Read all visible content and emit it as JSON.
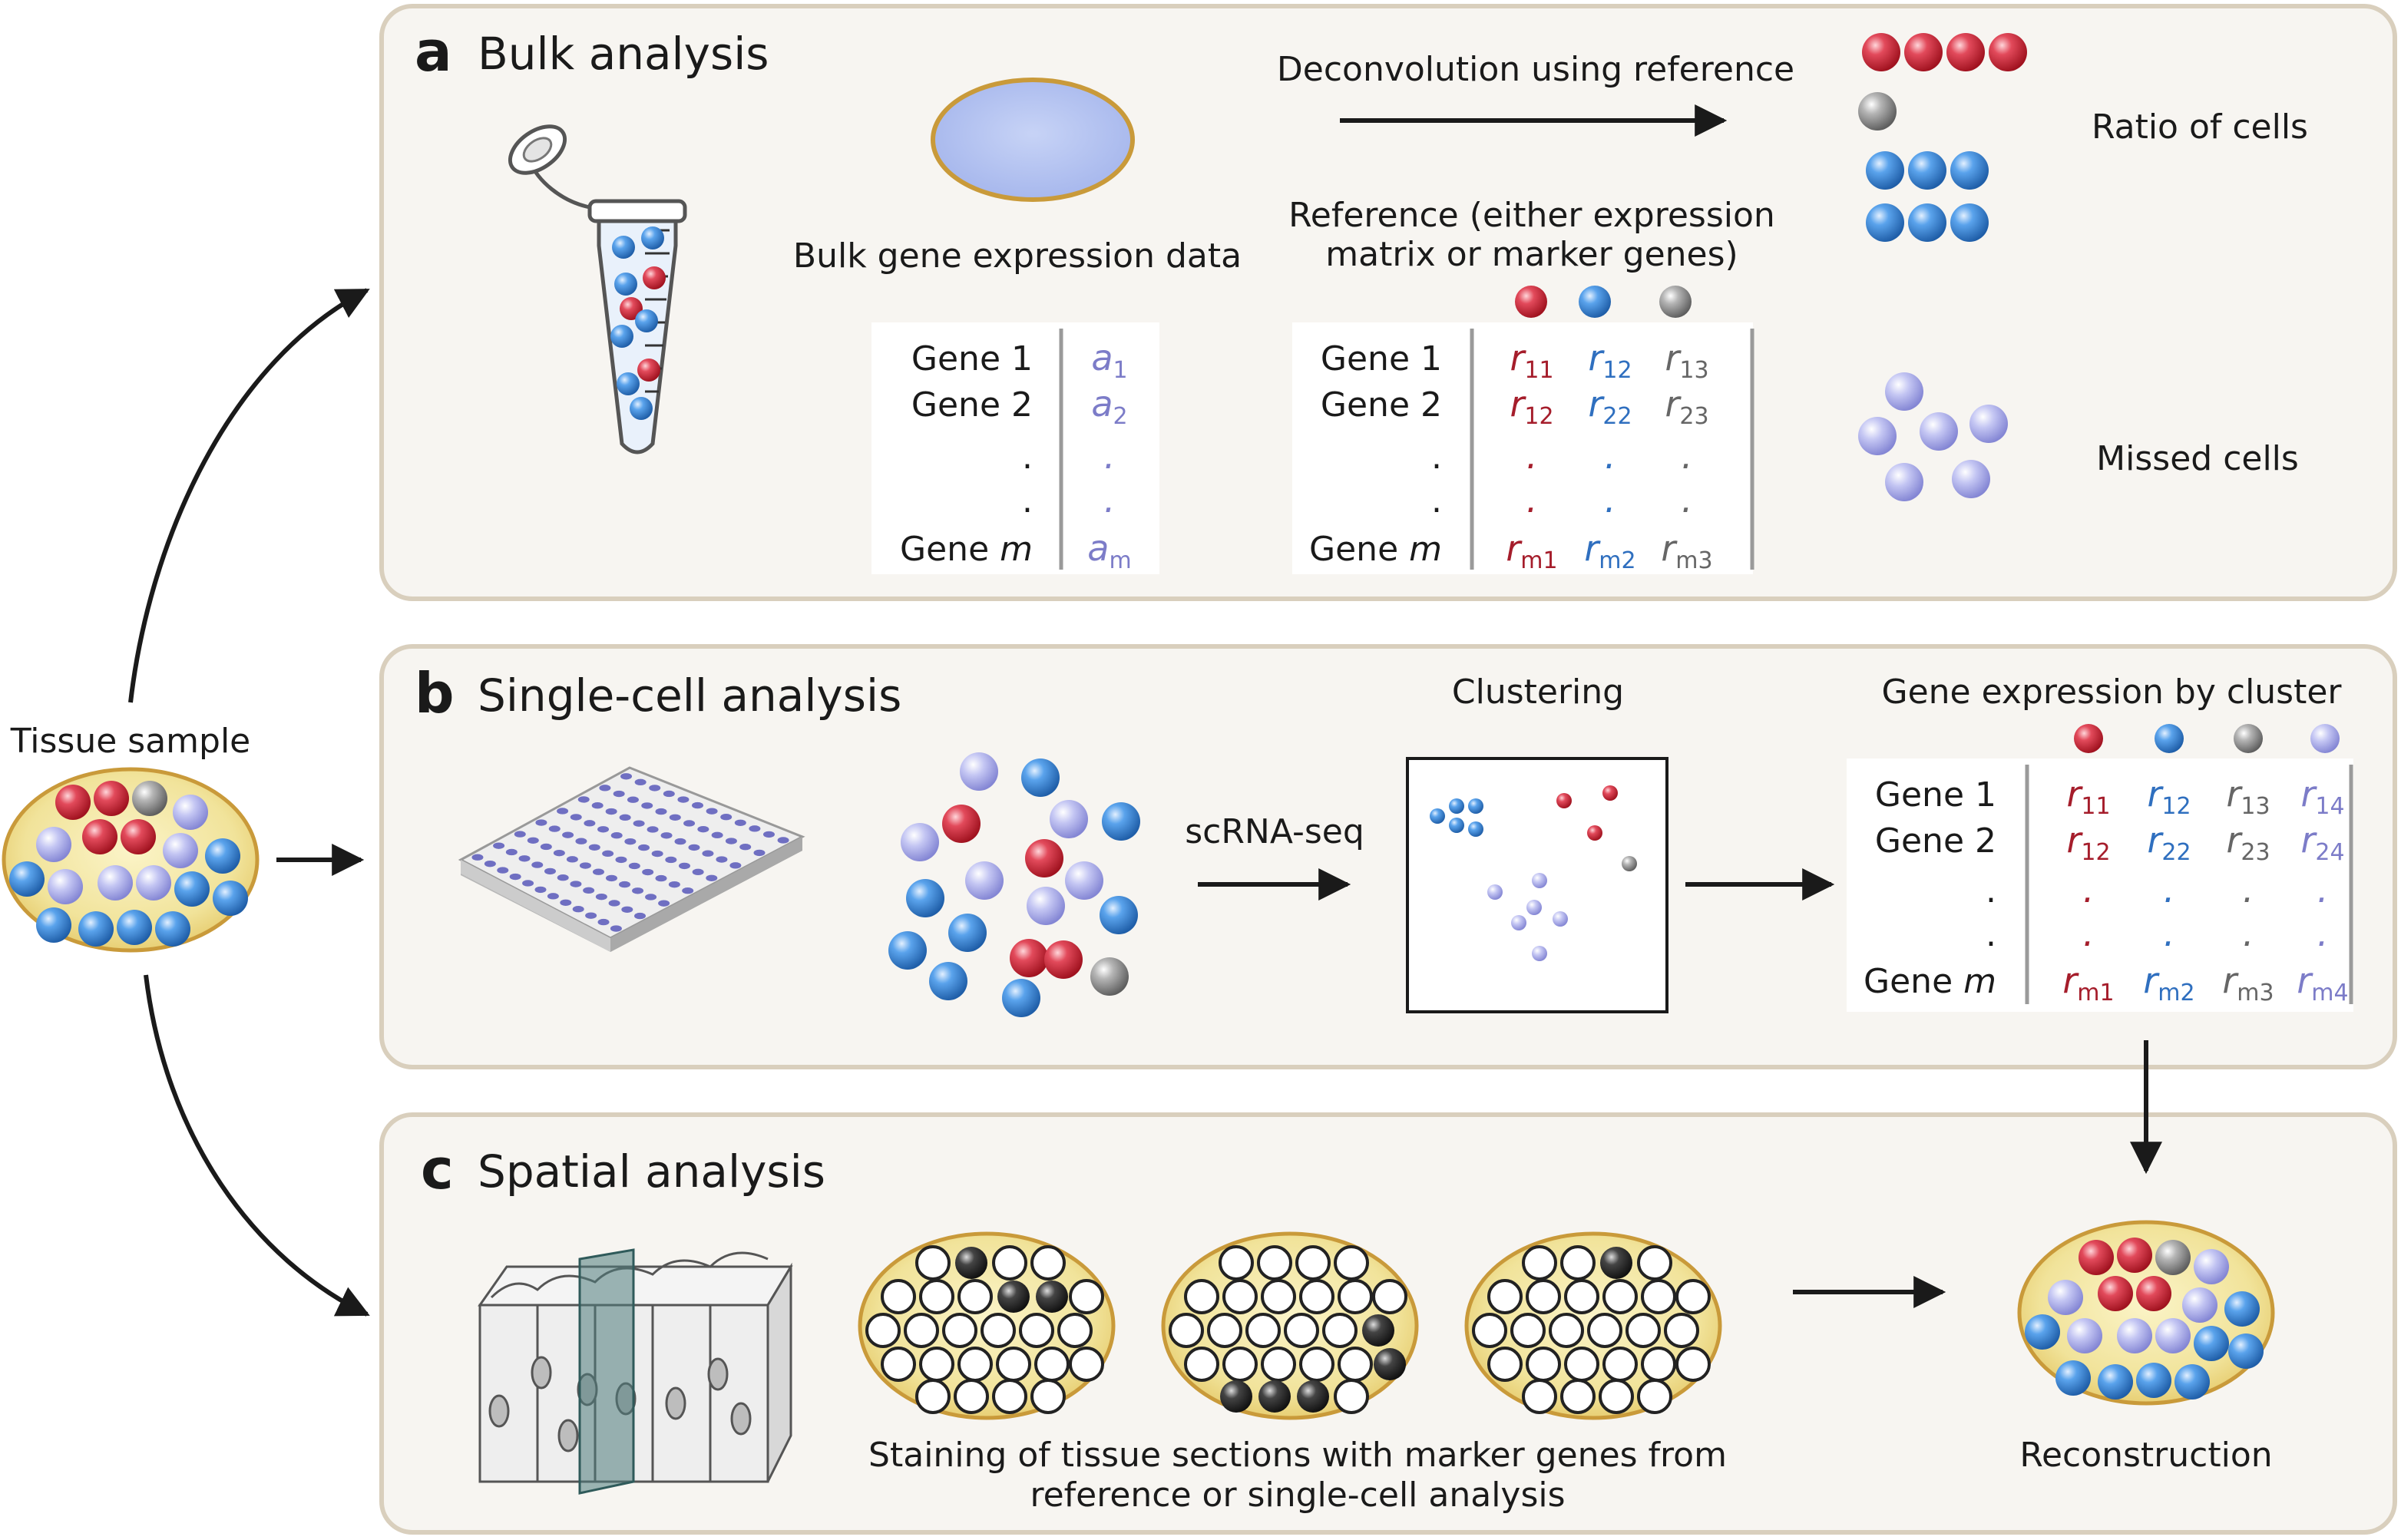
{
  "tissue_sample": {
    "label": "Tissue sample"
  },
  "panel_a": {
    "letter": "a",
    "title": "Bulk analysis",
    "bulk_label": "Bulk gene expression data",
    "deconvolution_label": "Deconvolution using reference",
    "reference_label_line1": "Reference (either expression",
    "reference_label_line2": "matrix or marker genes)",
    "ratio_label": "Ratio of cells",
    "missed_label": "Missed cells",
    "genes": [
      "Gene 1",
      "Gene 2",
      ".",
      ".",
      "Gene "
    ],
    "gene_m_var": "m",
    "bulk_values": [
      {
        "base": "a",
        "sub": "1"
      },
      {
        "base": "a",
        "sub": "2"
      },
      {
        "base": ".",
        "sub": ""
      },
      {
        "base": ".",
        "sub": ""
      },
      {
        "base": "a",
        "sub": "m"
      }
    ],
    "ref_matrix": [
      [
        {
          "base": "r",
          "sub": "11"
        },
        {
          "base": "r",
          "sub": "12"
        },
        {
          "base": "r",
          "sub": "13"
        }
      ],
      [
        {
          "base": "r",
          "sub": "12"
        },
        {
          "base": "r",
          "sub": "22"
        },
        {
          "base": "r",
          "sub": "23"
        }
      ],
      [
        {
          "base": ".",
          "sub": ""
        },
        {
          "base": ".",
          "sub": ""
        },
        {
          "base": ".",
          "sub": ""
        }
      ],
      [
        {
          "base": ".",
          "sub": ""
        },
        {
          "base": ".",
          "sub": ""
        },
        {
          "base": ".",
          "sub": ""
        }
      ],
      [
        {
          "base": "r",
          "sub": "m1"
        },
        {
          "base": "r",
          "sub": "m2"
        },
        {
          "base": "r",
          "sub": "m3"
        }
      ]
    ]
  },
  "panel_b": {
    "letter": "b",
    "title": "Single-cell analysis",
    "scrna_label": "scRNA-seq",
    "clustering_label": "Clustering",
    "gene_expr_label": "Gene expression by cluster",
    "genes": [
      "Gene 1",
      "Gene 2",
      ".",
      ".",
      "Gene "
    ],
    "gene_m_var": "m",
    "cluster_matrix": [
      [
        {
          "base": "r",
          "sub": "11"
        },
        {
          "base": "r",
          "sub": "12"
        },
        {
          "base": "r",
          "sub": "13"
        },
        {
          "base": "r",
          "sub": "14"
        }
      ],
      [
        {
          "base": "r",
          "sub": "12"
        },
        {
          "base": "r",
          "sub": "22"
        },
        {
          "base": "r",
          "sub": "23"
        },
        {
          "base": "r",
          "sub": "24"
        }
      ],
      [
        {
          "base": ".",
          "sub": ""
        },
        {
          "base": ".",
          "sub": ""
        },
        {
          "base": ".",
          "sub": ""
        },
        {
          "base": ".",
          "sub": ""
        }
      ],
      [
        {
          "base": ".",
          "sub": ""
        },
        {
          "base": ".",
          "sub": ""
        },
        {
          "base": ".",
          "sub": ""
        },
        {
          "base": ".",
          "sub": ""
        }
      ],
      [
        {
          "base": "r",
          "sub": "m1"
        },
        {
          "base": "r",
          "sub": "m2"
        },
        {
          "base": "r",
          "sub": "m3"
        },
        {
          "base": "r",
          "sub": "m4"
        }
      ]
    ]
  },
  "panel_c": {
    "letter": "c",
    "title": "Spatial analysis",
    "staining_line1": "Staining of tissue sections with marker genes from",
    "staining_line2": "reference or single-cell analysis",
    "reconstruction_label": "Reconstruction"
  },
  "colors": {
    "panel_fill": "#f7f5f1",
    "panel_border": "#d9cfbd",
    "cell_red": "#d3253a",
    "cell_blue": "#3b86d8",
    "cell_gray": "#9a9a9a",
    "cell_purple": "#aeb0ea",
    "tissue_fill": "#f4ecb8",
    "tissue_border": "#c99a3a"
  }
}
